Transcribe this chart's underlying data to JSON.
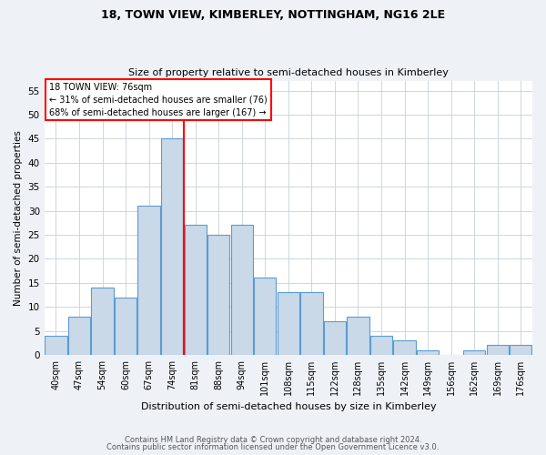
{
  "title1": "18, TOWN VIEW, KIMBERLEY, NOTTINGHAM, NG16 2LE",
  "title2": "Size of property relative to semi-detached houses in Kimberley",
  "xlabel": "Distribution of semi-detached houses by size in Kimberley",
  "ylabel": "Number of semi-detached properties",
  "categories": [
    "40sqm",
    "47sqm",
    "54sqm",
    "60sqm",
    "67sqm",
    "74sqm",
    "81sqm",
    "88sqm",
    "94sqm",
    "101sqm",
    "108sqm",
    "115sqm",
    "122sqm",
    "128sqm",
    "135sqm",
    "142sqm",
    "149sqm",
    "156sqm",
    "162sqm",
    "169sqm",
    "176sqm"
  ],
  "values": [
    4,
    8,
    14,
    12,
    31,
    45,
    27,
    25,
    27,
    16,
    13,
    13,
    7,
    8,
    4,
    3,
    1,
    0,
    1,
    2,
    2
  ],
  "bar_color": "#c9d9e8",
  "bar_edge_color": "#5b9bd5",
  "vline_color": "red",
  "vline_index": 5,
  "property_size": "76sqm",
  "smaller_pct": 31,
  "smaller_count": 76,
  "larger_pct": 68,
  "larger_count": 167,
  "ylim": [
    0,
    57
  ],
  "yticks": [
    0,
    5,
    10,
    15,
    20,
    25,
    30,
    35,
    40,
    45,
    50,
    55
  ],
  "footnote1": "Contains HM Land Registry data © Crown copyright and database right 2024.",
  "footnote2": "Contains public sector information licensed under the Open Government Licence v3.0.",
  "bg_color": "#eef2f7",
  "plot_bg_color": "#ffffff"
}
